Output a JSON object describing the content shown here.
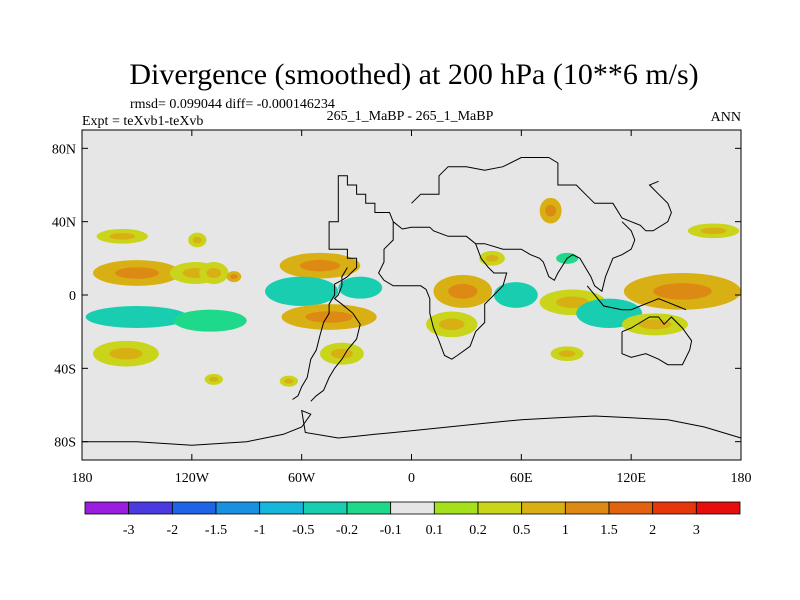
{
  "chart_data": {
    "type": "heatmap",
    "title": "Divergence (smoothed) at 200 hPa (10**6 m/s)",
    "stats_text": "rmsd= 0.099044 diff= -0.000146234",
    "case_label": "265_1_MaBP - 265_1_MaBP",
    "expt_label": "Expt = teXvb1-teXvb",
    "period_label": "ANN",
    "projection": "cylindrical equidistant",
    "x_range": [
      -180,
      180
    ],
    "y_range": [
      -90,
      90
    ],
    "x_ticks": [
      {
        "value": -180,
        "label": "180"
      },
      {
        "value": -120,
        "label": "120W"
      },
      {
        "value": -60,
        "label": "60W"
      },
      {
        "value": 0,
        "label": "0"
      },
      {
        "value": 60,
        "label": "60E"
      },
      {
        "value": 120,
        "label": "120E"
      },
      {
        "value": 180,
        "label": "180"
      }
    ],
    "y_ticks": [
      {
        "value": 80,
        "label": "80N"
      },
      {
        "value": 40,
        "label": "40N"
      },
      {
        "value": 0,
        "label": "0"
      },
      {
        "value": -40,
        "label": "40S"
      },
      {
        "value": -80,
        "label": "80S"
      }
    ],
    "colorbar": {
      "levels": [
        "-3",
        "-2",
        "-1.5",
        "-1",
        "-0.5",
        "-0.2",
        "-0.1",
        "0.1",
        "0.2",
        "0.5",
        "1",
        "1.5",
        "2",
        "3"
      ],
      "colors": [
        "#9b1de0",
        "#4b3ae0",
        "#1f63e6",
        "#1a90e0",
        "#17b7dc",
        "#19cdb0",
        "#1fd98a",
        "#e6e6e6",
        "#a4e01c",
        "#c9d41a",
        "#d9b014",
        "#dd8a14",
        "#e3620f",
        "#e6360c",
        "#e60d0d"
      ]
    },
    "background_color": "#e6e6e6",
    "features": [
      {
        "name": "pacific-nh-subtropics",
        "lon": -150,
        "lat": 12,
        "w": 24,
        "h": 7,
        "level": 0.5
      },
      {
        "name": "pacific-nh-subtropics-b",
        "lon": -118,
        "lat": 12,
        "w": 14,
        "h": 6,
        "level": 0.2
      },
      {
        "name": "north-pacific-35n",
        "lon": -158,
        "lat": 32,
        "w": 14,
        "h": 4,
        "level": 0.2
      },
      {
        "name": "north-pacific-35n-b",
        "lon": -117,
        "lat": 30,
        "w": 5,
        "h": 4,
        "level": 0.2
      },
      {
        "name": "east-pacific-itcz",
        "lon": -108,
        "lat": 12,
        "w": 8,
        "h": 6,
        "level": 0.2
      },
      {
        "name": "east-pacific-10n",
        "lon": -97,
        "lat": 10,
        "w": 4,
        "h": 3,
        "level": 0.5
      },
      {
        "name": "caribbean-15n",
        "lon": -50,
        "lat": 16,
        "w": 22,
        "h": 7,
        "level": 0.5
      },
      {
        "name": "central-america-conv",
        "lon": -60,
        "lat": 2,
        "w": 20,
        "h": 8,
        "level": -0.5
      },
      {
        "name": "atlantic-eq-conv",
        "lon": -28,
        "lat": 4,
        "w": 12,
        "h": 6,
        "level": -0.5
      },
      {
        "name": "pacific-sh-conv",
        "lon": -150,
        "lat": -12,
        "w": 28,
        "h": 6,
        "level": -0.5
      },
      {
        "name": "pacific-sh-conv-b",
        "lon": -110,
        "lat": -14,
        "w": 20,
        "h": 6,
        "level": -0.2
      },
      {
        "name": "south-america-div",
        "lon": -45,
        "lat": -12,
        "w": 26,
        "h": 7,
        "level": 0.5
      },
      {
        "name": "south-pacific-30s",
        "lon": -156,
        "lat": -32,
        "w": 18,
        "h": 7,
        "level": 0.2
      },
      {
        "name": "south-atlantic-30s",
        "lon": -38,
        "lat": -32,
        "w": 12,
        "h": 6,
        "level": 0.2
      },
      {
        "name": "south-pacific-45s",
        "lon": -108,
        "lat": -46,
        "w": 5,
        "h": 3,
        "level": 0.2
      },
      {
        "name": "south-atlantic-45s",
        "lon": -67,
        "lat": -47,
        "w": 5,
        "h": 3,
        "level": 0.2
      },
      {
        "name": "africa-eq",
        "lon": 28,
        "lat": 2,
        "w": 16,
        "h": 9,
        "level": 0.5
      },
      {
        "name": "africa-south",
        "lon": 22,
        "lat": -16,
        "w": 14,
        "h": 7,
        "level": 0.2
      },
      {
        "name": "arabian-sea-conv",
        "lon": 57,
        "lat": 0,
        "w": 12,
        "h": 7,
        "level": -0.5
      },
      {
        "name": "mediterranean-35n",
        "lon": 44,
        "lat": 20,
        "w": 7,
        "h": 4,
        "level": 0.2
      },
      {
        "name": "tibet-45n",
        "lon": 76,
        "lat": 46,
        "w": 6,
        "h": 7,
        "level": 0.5
      },
      {
        "name": "east-asia-conv",
        "lon": 85,
        "lat": 20,
        "w": 6,
        "h": 3,
        "level": -0.2
      },
      {
        "name": "indian-ocean-eq",
        "lon": 88,
        "lat": -4,
        "w": 18,
        "h": 7,
        "level": 0.2
      },
      {
        "name": "maritime-continent-conv",
        "lon": 108,
        "lat": -10,
        "w": 18,
        "h": 8,
        "level": -0.5
      },
      {
        "name": "west-pacific-div",
        "lon": 148,
        "lat": 2,
        "w": 32,
        "h": 10,
        "level": 0.5
      },
      {
        "name": "australia-div",
        "lon": 133,
        "lat": -16,
        "w": 18,
        "h": 6,
        "level": 0.2
      },
      {
        "name": "north-pacific-40n",
        "lon": 165,
        "lat": 35,
        "w": 14,
        "h": 4,
        "level": 0.2
      },
      {
        "name": "south-indian-30s",
        "lon": 85,
        "lat": -32,
        "w": 9,
        "h": 4,
        "level": 0.2
      }
    ],
    "coastline_segments": [
      {
        "name": "north-america-east",
        "points": [
          [
            -10,
            40
          ],
          [
            -12,
            45
          ],
          [
            -20,
            45
          ],
          [
            -20,
            50
          ],
          [
            -25,
            50
          ],
          [
            -25,
            55
          ],
          [
            -30,
            55
          ],
          [
            -30,
            60
          ],
          [
            -35,
            60
          ],
          [
            -35,
            65
          ],
          [
            -40,
            65
          ],
          [
            -40,
            45
          ],
          [
            -40,
            40
          ],
          [
            -45,
            40
          ],
          [
            -45,
            25
          ],
          [
            -35,
            25
          ],
          [
            -35,
            20
          ],
          [
            -30,
            20
          ],
          [
            -30,
            15
          ],
          [
            -35,
            10
          ],
          [
            -38,
            8
          ],
          [
            -42,
            6
          ],
          [
            -42,
            0
          ],
          [
            -45,
            -5
          ],
          [
            -45,
            -10
          ],
          [
            -48,
            -15
          ],
          [
            -50,
            -22
          ],
          [
            -52,
            -30
          ],
          [
            -55,
            -35
          ],
          [
            -57,
            -45
          ],
          [
            -60,
            -50
          ],
          [
            -62,
            -55
          ],
          [
            -65,
            -57
          ]
        ]
      },
      {
        "name": "south-america-west",
        "points": [
          [
            -35,
            15
          ],
          [
            -38,
            10
          ],
          [
            -38,
            5
          ],
          [
            -40,
            0
          ],
          [
            -42,
            -2
          ],
          [
            -38,
            -5
          ],
          [
            -32,
            -10
          ],
          [
            -28,
            -16
          ],
          [
            -30,
            -24
          ],
          [
            -35,
            -30
          ],
          [
            -38,
            -35
          ],
          [
            -42,
            -40
          ],
          [
            -45,
            -45
          ],
          [
            -48,
            -52
          ],
          [
            -52,
            -55
          ],
          [
            -55,
            -58
          ]
        ]
      },
      {
        "name": "africa-west",
        "points": [
          [
            -10,
            40
          ],
          [
            -10,
            30
          ],
          [
            -15,
            25
          ],
          [
            -15,
            18
          ],
          [
            -18,
            12
          ],
          [
            -15,
            8
          ],
          [
            -10,
            5
          ],
          [
            0,
            5
          ],
          [
            5,
            5
          ],
          [
            8,
            3
          ],
          [
            10,
            -2
          ],
          [
            10,
            -10
          ],
          [
            12,
            -18
          ],
          [
            15,
            -25
          ],
          [
            18,
            -33
          ],
          [
            22,
            -35
          ],
          [
            25,
            -33
          ],
          [
            32,
            -28
          ],
          [
            35,
            -20
          ],
          [
            40,
            -15
          ],
          [
            40,
            -5
          ],
          [
            45,
            0
          ],
          [
            50,
            5
          ],
          [
            52,
            12
          ],
          [
            45,
            12
          ],
          [
            42,
            15
          ],
          [
            38,
            20
          ],
          [
            35,
            28
          ],
          [
            30,
            32
          ],
          [
            20,
            32
          ],
          [
            12,
            35
          ],
          [
            10,
            37
          ],
          [
            0,
            37
          ],
          [
            -5,
            36
          ],
          [
            -10,
            40
          ]
        ]
      },
      {
        "name": "eurasia-north",
        "points": [
          [
            0,
            50
          ],
          [
            5,
            55
          ],
          [
            15,
            55
          ],
          [
            15,
            65
          ],
          [
            20,
            70
          ],
          [
            30,
            70
          ],
          [
            40,
            68
          ],
          [
            50,
            70
          ],
          [
            60,
            75
          ],
          [
            75,
            75
          ],
          [
            80,
            72
          ],
          [
            80,
            60
          ],
          [
            90,
            60
          ],
          [
            95,
            55
          ],
          [
            100,
            50
          ],
          [
            110,
            50
          ],
          [
            115,
            42
          ],
          [
            120,
            40
          ],
          [
            125,
            38
          ],
          [
            128,
            35
          ],
          [
            132,
            35
          ],
          [
            140,
            40
          ],
          [
            142,
            45
          ],
          [
            140,
            50
          ],
          [
            135,
            55
          ],
          [
            130,
            60
          ],
          [
            135,
            62
          ]
        ]
      },
      {
        "name": "asia-south",
        "points": [
          [
            35,
            28
          ],
          [
            40,
            28
          ],
          [
            50,
            25
          ],
          [
            55,
            25
          ],
          [
            60,
            25
          ],
          [
            65,
            22
          ],
          [
            70,
            20
          ],
          [
            72,
            18
          ],
          [
            75,
            10
          ],
          [
            78,
            8
          ],
          [
            80,
            12
          ],
          [
            85,
            20
          ],
          [
            88,
            22
          ],
          [
            92,
            20
          ],
          [
            95,
            15
          ],
          [
            98,
            10
          ],
          [
            100,
            5
          ],
          [
            104,
            2
          ],
          [
            106,
            10
          ],
          [
            108,
            15
          ],
          [
            110,
            20
          ],
          [
            115,
            22
          ],
          [
            120,
            25
          ],
          [
            122,
            30
          ],
          [
            120,
            35
          ],
          [
            115,
            40
          ]
        ]
      },
      {
        "name": "maritime-continent",
        "points": [
          [
            96,
            5
          ],
          [
            105,
            -6
          ],
          [
            115,
            -8
          ],
          [
            120,
            -8
          ],
          [
            125,
            -6
          ],
          [
            130,
            -4
          ],
          [
            135,
            -2
          ],
          [
            140,
            -4
          ],
          [
            145,
            -6
          ],
          [
            150,
            -8
          ]
        ]
      },
      {
        "name": "australia",
        "points": [
          [
            115,
            -20
          ],
          [
            115,
            -32
          ],
          [
            120,
            -34
          ],
          [
            128,
            -32
          ],
          [
            135,
            -35
          ],
          [
            140,
            -38
          ],
          [
            148,
            -38
          ],
          [
            152,
            -30
          ],
          [
            153,
            -25
          ],
          [
            148,
            -18
          ],
          [
            142,
            -12
          ],
          [
            138,
            -16
          ],
          [
            135,
            -12
          ],
          [
            130,
            -12
          ],
          [
            125,
            -15
          ],
          [
            120,
            -18
          ],
          [
            115,
            -20
          ]
        ]
      },
      {
        "name": "antarctica",
        "points": [
          [
            -180,
            -80
          ],
          [
            -150,
            -80
          ],
          [
            -120,
            -82
          ],
          [
            -90,
            -80
          ],
          [
            -70,
            -76
          ],
          [
            -60,
            -72
          ],
          [
            -55,
            -65
          ],
          [
            -60,
            -63
          ],
          [
            -58,
            -75
          ],
          [
            -40,
            -78
          ],
          [
            -30,
            -77
          ],
          [
            -20,
            -76
          ],
          [
            0,
            -74
          ],
          [
            20,
            -72
          ],
          [
            40,
            -70
          ],
          [
            60,
            -68
          ],
          [
            80,
            -67
          ],
          [
            100,
            -66
          ],
          [
            120,
            -67
          ],
          [
            140,
            -68
          ],
          [
            160,
            -72
          ],
          [
            180,
            -78
          ]
        ]
      }
    ]
  }
}
